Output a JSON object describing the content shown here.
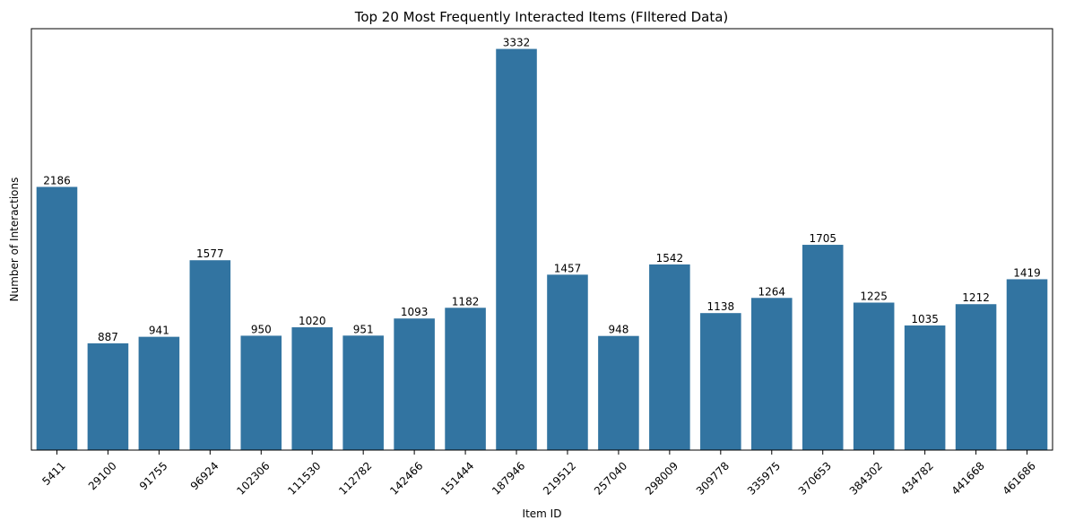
{
  "chart_data": {
    "type": "bar",
    "title": "Top 20 Most Frequently Interacted Items (FIltered Data)",
    "xlabel": "Item ID",
    "ylabel": "Number of Interactions",
    "categories": [
      "5411",
      "29100",
      "91755",
      "96924",
      "102306",
      "111530",
      "112782",
      "142466",
      "151444",
      "187946",
      "219512",
      "257040",
      "298009",
      "309778",
      "335975",
      "370653",
      "384302",
      "434782",
      "441668",
      "461686"
    ],
    "values": [
      2186,
      887,
      941,
      1577,
      950,
      1020,
      951,
      1093,
      1182,
      3332,
      1457,
      948,
      1542,
      1138,
      1264,
      1705,
      1225,
      1035,
      1212,
      1419
    ],
    "ylim": [
      0,
      3500
    ],
    "color": "#3274a1",
    "grid": false,
    "y_ticks_visible": false
  }
}
